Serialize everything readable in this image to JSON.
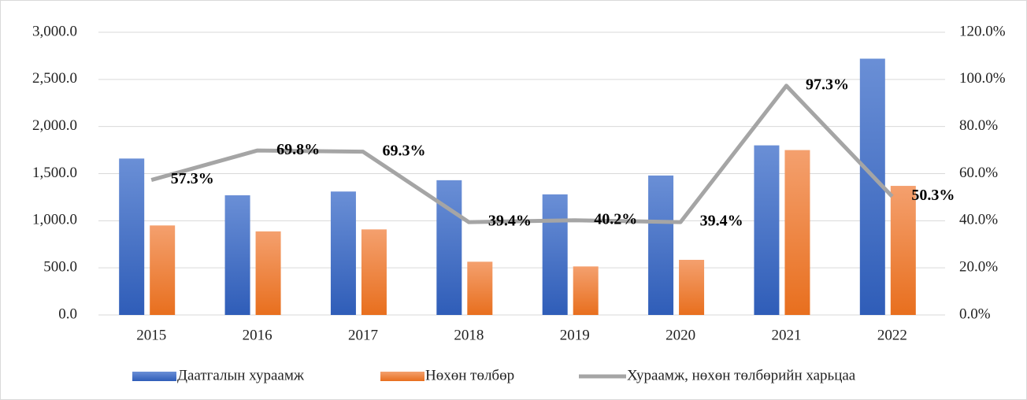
{
  "chart_data": {
    "type": "bar_line",
    "categories": [
      "2015",
      "2016",
      "2017",
      "2018",
      "2019",
      "2020",
      "2021",
      "2022"
    ],
    "series": [
      {
        "name": "Даатгалын хураамж",
        "type": "bar",
        "color": "#4472c4",
        "values": [
          1660,
          1270,
          1310,
          1430,
          1280,
          1480,
          1800,
          2720
        ]
      },
      {
        "name": "Нөхөн төлбөр",
        "type": "bar",
        "color": "#ed7d31",
        "values": [
          950,
          887,
          908,
          565,
          515,
          585,
          1750,
          1370
        ]
      },
      {
        "name": "Хураамж, нөхөн төлбөрийн харьцаа",
        "type": "line",
        "axis": "y2",
        "color": "#a5a5a5",
        "values": [
          57.3,
          69.8,
          69.3,
          39.4,
          40.2,
          39.4,
          97.3,
          50.3
        ],
        "value_labels": [
          "57.3%",
          "69.8%",
          "69.3%",
          "39.4%",
          "40.2%",
          "39.4%",
          "97.3%",
          "50.3%"
        ]
      }
    ],
    "ylim": [
      0,
      3000
    ],
    "yticks": [
      {
        "value": 0,
        "label": "0.0"
      },
      {
        "value": 500,
        "label": "500.0"
      },
      {
        "value": 1000,
        "label": "1,000.0"
      },
      {
        "value": 1500,
        "label": "1,500.0"
      },
      {
        "value": 2000,
        "label": "2,000.0"
      },
      {
        "value": 2500,
        "label": "2,500.0"
      },
      {
        "value": 3000,
        "label": "3,000.0"
      }
    ],
    "y2lim": [
      0,
      120
    ],
    "y2ticks": [
      {
        "value": 0,
        "label": "0.0%"
      },
      {
        "value": 20,
        "label": "20.0%"
      },
      {
        "value": 40,
        "label": "40.0%"
      },
      {
        "value": 60,
        "label": "60.0%"
      },
      {
        "value": 80,
        "label": "80.0%"
      },
      {
        "value": 100,
        "label": "100.0%"
      },
      {
        "value": 120,
        "label": "120.0%"
      }
    ],
    "grid": true,
    "legend": "bottom"
  }
}
